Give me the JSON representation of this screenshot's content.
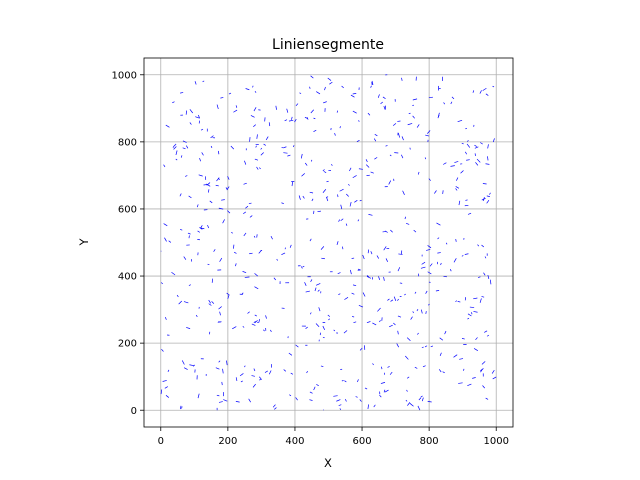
{
  "chart_data": {
    "type": "line",
    "title": "Liniensegmente",
    "xlabel": "X",
    "ylabel": "Y",
    "xlim": [
      -50,
      1050
    ],
    "ylim": [
      -50,
      1050
    ],
    "xticks": [
      0,
      200,
      400,
      600,
      800,
      1000
    ],
    "yticks": [
      0,
      200,
      400,
      600,
      800,
      1000
    ],
    "grid": true,
    "segment_color": "#0000ff",
    "segment_count": 600,
    "segment_length_approx": 10,
    "series": [
      {
        "segments_sample": [
          [
            [
              2,
              182
            ],
            [
              8,
              175
            ]
          ],
          [
            [
              112,
              880
            ],
            [
              116,
              870
            ]
          ],
          [
            [
              262,
              34
            ],
            [
              268,
              24
            ]
          ],
          [
            [
              498,
              284
            ],
            [
              504,
              279
            ]
          ],
          [
            [
              402,
              38
            ],
            [
              408,
              30
            ]
          ],
          [
            [
              830,
              122
            ],
            [
              836,
              114
            ]
          ],
          [
            [
              612,
              748
            ],
            [
              616,
              740
            ]
          ],
          [
            [
              868,
              934
            ],
            [
              874,
              928
            ]
          ],
          [
            [
              486,
              712
            ],
            [
              493,
              708
            ]
          ],
          [
            [
              962,
              410
            ],
            [
              967,
              402
            ]
          ]
        ]
      }
    ]
  }
}
